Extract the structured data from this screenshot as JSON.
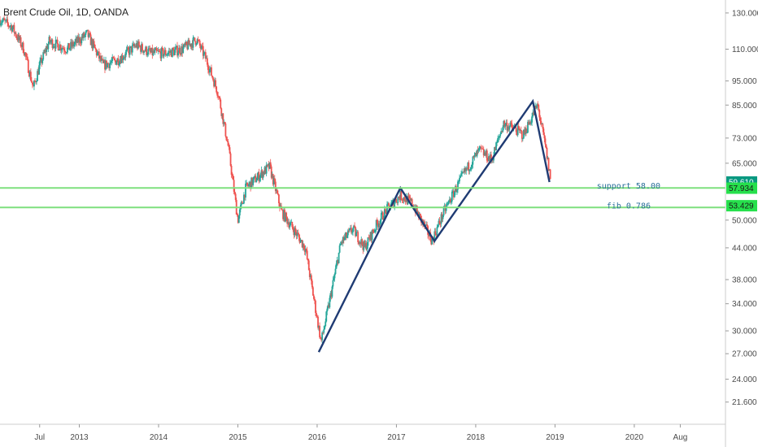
{
  "chart_data": {
    "type": "candlestick",
    "title": "Brent Crude Oil, 1D, OANDA",
    "y_scale": "log",
    "ylim": [
      19.5,
      138
    ],
    "y_ticks": [
      "130.000",
      "110.000",
      "95.000",
      "85.000",
      "73.000",
      "65.000",
      "50.000",
      "44.000",
      "38.000",
      "34.000",
      "30.000",
      "27.000",
      "24.000",
      "21.600"
    ],
    "x_ticks": [
      {
        "label": "Jul",
        "t": 2012.5
      },
      {
        "label": "2013",
        "t": 2013.0
      },
      {
        "label": "2014",
        "t": 2014.0
      },
      {
        "label": "2015",
        "t": 2015.0
      },
      {
        "label": "2016",
        "t": 2016.0
      },
      {
        "label": "2017",
        "t": 2017.0
      },
      {
        "label": "2018",
        "t": 2018.0
      },
      {
        "label": "2019",
        "t": 2019.0
      },
      {
        "label": "2020",
        "t": 2020.0
      },
      {
        "label": "Aug",
        "t": 2020.58
      }
    ],
    "xlim": [
      2012.0,
      2021.15
    ],
    "price_path": [
      [
        2012.0,
        126
      ],
      [
        2012.15,
        122
      ],
      [
        2012.3,
        110
      ],
      [
        2012.42,
        92
      ],
      [
        2012.5,
        102
      ],
      [
        2012.62,
        114
      ],
      [
        2012.85,
        110
      ],
      [
        2013.1,
        118
      ],
      [
        2013.3,
        102
      ],
      [
        2013.5,
        105
      ],
      [
        2013.72,
        112
      ],
      [
        2013.9,
        108
      ],
      [
        2014.1,
        108
      ],
      [
        2014.3,
        110
      ],
      [
        2014.48,
        115
      ],
      [
        2014.6,
        105
      ],
      [
        2014.75,
        90
      ],
      [
        2014.88,
        70
      ],
      [
        2015.0,
        50
      ],
      [
        2015.1,
        58
      ],
      [
        2015.3,
        62
      ],
      [
        2015.4,
        64
      ],
      [
        2015.55,
        52
      ],
      [
        2015.7,
        48
      ],
      [
        2015.85,
        44
      ],
      [
        2016.05,
        28.5
      ],
      [
        2016.15,
        34
      ],
      [
        2016.3,
        45
      ],
      [
        2016.45,
        48
      ],
      [
        2016.6,
        44
      ],
      [
        2016.75,
        49
      ],
      [
        2016.9,
        53
      ],
      [
        2017.05,
        56
      ],
      [
        2017.2,
        54
      ],
      [
        2017.45,
        45.5
      ],
      [
        2017.6,
        52
      ],
      [
        2017.85,
        62
      ],
      [
        2018.05,
        69
      ],
      [
        2018.2,
        66
      ],
      [
        2018.35,
        78
      ],
      [
        2018.5,
        76
      ],
      [
        2018.6,
        74
      ],
      [
        2018.78,
        85
      ],
      [
        2018.88,
        70
      ],
      [
        2018.95,
        59.6
      ]
    ],
    "pattern_lines": [
      [
        [
          2016.02,
          27.2
        ],
        [
          2017.05,
          58.0
        ],
        [
          2017.48,
          45.4
        ],
        [
          2018.72,
          86.5
        ],
        [
          2018.93,
          59.6
        ]
      ]
    ],
    "support_levels": [
      {
        "value": 58.0,
        "label": "support 58.00",
        "color": "#7fe07f"
      },
      {
        "value": 53.0,
        "label": "fib 0.786",
        "color": "#7fe07f"
      }
    ],
    "price_badges": [
      {
        "value": 59.61,
        "text": "59.610",
        "color": "#089981",
        "text_color": "#ffffff"
      },
      {
        "value": 57.934,
        "text": "57.934",
        "color": "#26e04c",
        "text_color": "#1a1a1a"
      },
      {
        "value": 53.429,
        "text": "53.429",
        "color": "#26e04c",
        "text_color": "#1a1a1a"
      }
    ],
    "up_color": "#26a69a",
    "down_color": "#ef5350",
    "pattern_color": "#1f3b73"
  }
}
